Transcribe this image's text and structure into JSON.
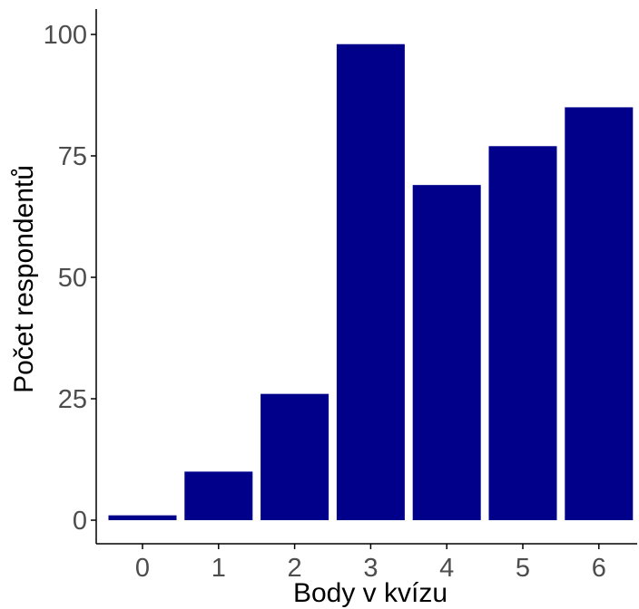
{
  "chart_data": {
    "type": "bar",
    "categories": [
      "0",
      "1",
      "2",
      "3",
      "4",
      "5",
      "6"
    ],
    "values": [
      1,
      10,
      26,
      98,
      69,
      77,
      85
    ],
    "title": "",
    "xlabel": "Body v kvízu",
    "ylabel": "Počet respondentů",
    "ylim": [
      0,
      104
    ],
    "yticks": [
      "0",
      "25",
      "50",
      "75",
      "100"
    ],
    "grid": false,
    "legend": "none",
    "colors": {
      "bar": "#00008B",
      "axis": "#000000",
      "tick_label": "#4d4d4d",
      "background": "#ffffff"
    }
  }
}
